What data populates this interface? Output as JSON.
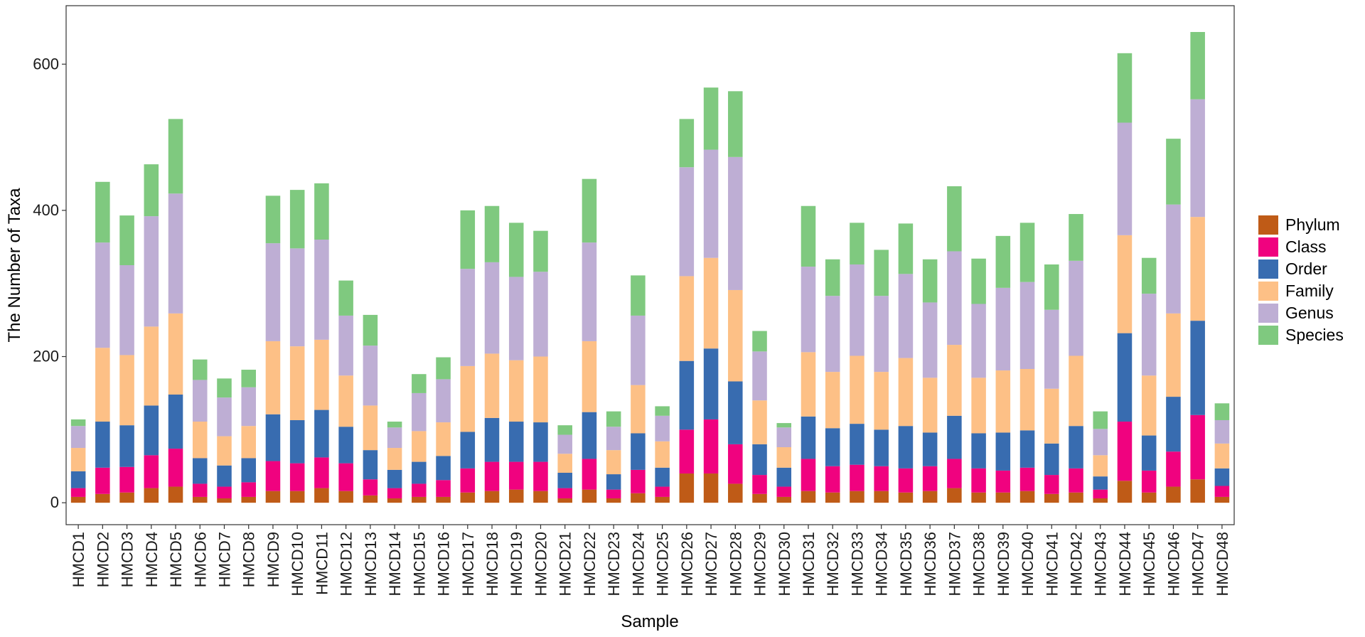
{
  "chart_data": {
    "type": "bar",
    "stacked": true,
    "title": "",
    "xlabel": "Sample",
    "ylabel": "The Number of Taxa",
    "ylim": [
      -30,
      680
    ],
    "yticks": [
      0,
      200,
      400,
      600
    ],
    "grid": false,
    "legend_position": "right",
    "categories": [
      "HMCD1",
      "HMCD2",
      "HMCD3",
      "HMCD4",
      "HMCD5",
      "HMCD6",
      "HMCD7",
      "HMCD8",
      "HMCD9",
      "HMCD10",
      "HMCD11",
      "HMCD12",
      "HMCD13",
      "HMCD14",
      "HMCD15",
      "HMCD16",
      "HMCD17",
      "HMCD18",
      "HMCD19",
      "HMCD20",
      "HMCD21",
      "HMCD22",
      "HMCD23",
      "HMCD24",
      "HMCD25",
      "HMCD26",
      "HMCD27",
      "HMCD28",
      "HMCD29",
      "HMCD30",
      "HMCD31",
      "HMCD32",
      "HMCD33",
      "HMCD34",
      "HMCD35",
      "HMCD36",
      "HMCD37",
      "HMCD38",
      "HMCD39",
      "HMCD40",
      "HMCD41",
      "HMCD42",
      "HMCD43",
      "HMCD44",
      "HMCD45",
      "HMCD46",
      "HMCD47",
      "HMCD48"
    ],
    "series": [
      {
        "name": "Phylum",
        "color": "#BF5B17",
        "values": [
          8,
          12,
          14,
          20,
          22,
          8,
          6,
          8,
          16,
          16,
          20,
          16,
          10,
          6,
          8,
          8,
          14,
          16,
          18,
          16,
          6,
          18,
          6,
          13,
          8,
          40,
          40,
          26,
          12,
          8,
          16,
          14,
          16,
          16,
          14,
          16,
          20,
          14,
          14,
          16,
          12,
          14,
          6,
          30,
          14,
          22,
          32,
          8
        ]
      },
      {
        "name": "Class",
        "color": "#F0027F",
        "values": [
          12,
          36,
          35,
          45,
          52,
          18,
          16,
          20,
          41,
          38,
          42,
          38,
          22,
          14,
          18,
          23,
          33,
          40,
          38,
          40,
          14,
          42,
          12,
          32,
          14,
          60,
          74,
          54,
          26,
          14,
          44,
          36,
          36,
          34,
          33,
          34,
          40,
          33,
          30,
          32,
          26,
          33,
          12,
          81,
          30,
          48,
          88,
          15
        ]
      },
      {
        "name": "Order",
        "color": "#386CB0",
        "values": [
          23,
          63,
          57,
          68,
          74,
          35,
          29,
          33,
          64,
          59,
          65,
          50,
          40,
          25,
          30,
          33,
          50,
          60,
          55,
          54,
          21,
          64,
          21,
          50,
          26,
          94,
          97,
          86,
          42,
          26,
          58,
          52,
          56,
          50,
          58,
          46,
          59,
          48,
          52,
          51,
          43,
          58,
          18,
          121,
          48,
          75,
          129,
          24
        ]
      },
      {
        "name": "Family",
        "color": "#FDC086",
        "values": [
          32,
          101,
          96,
          108,
          111,
          50,
          40,
          44,
          100,
          101,
          96,
          70,
          61,
          30,
          42,
          46,
          90,
          88,
          84,
          90,
          26,
          97,
          33,
          66,
          36,
          116,
          124,
          125,
          60,
          28,
          88,
          77,
          93,
          79,
          93,
          75,
          97,
          76,
          85,
          84,
          75,
          96,
          29,
          134,
          82,
          114,
          142,
          34
        ]
      },
      {
        "name": "Genus",
        "color": "#BEAED4",
        "values": [
          30,
          144,
          123,
          151,
          164,
          57,
          53,
          53,
          134,
          134,
          137,
          82,
          82,
          28,
          52,
          59,
          133,
          125,
          114,
          116,
          26,
          135,
          32,
          95,
          35,
          149,
          148,
          182,
          67,
          27,
          117,
          104,
          125,
          104,
          115,
          103,
          128,
          101,
          113,
          119,
          108,
          130,
          36,
          154,
          112,
          149,
          161,
          32
        ]
      },
      {
        "name": "Species",
        "color": "#7FC97F",
        "values": [
          9,
          83,
          68,
          71,
          102,
          28,
          26,
          24,
          65,
          80,
          77,
          48,
          42,
          8,
          26,
          30,
          80,
          77,
          74,
          56,
          13,
          87,
          21,
          55,
          13,
          66,
          85,
          90,
          28,
          6,
          83,
          50,
          57,
          63,
          69,
          59,
          89,
          62,
          71,
          81,
          62,
          64,
          24,
          95,
          49,
          90,
          92,
          23
        ]
      }
    ]
  }
}
